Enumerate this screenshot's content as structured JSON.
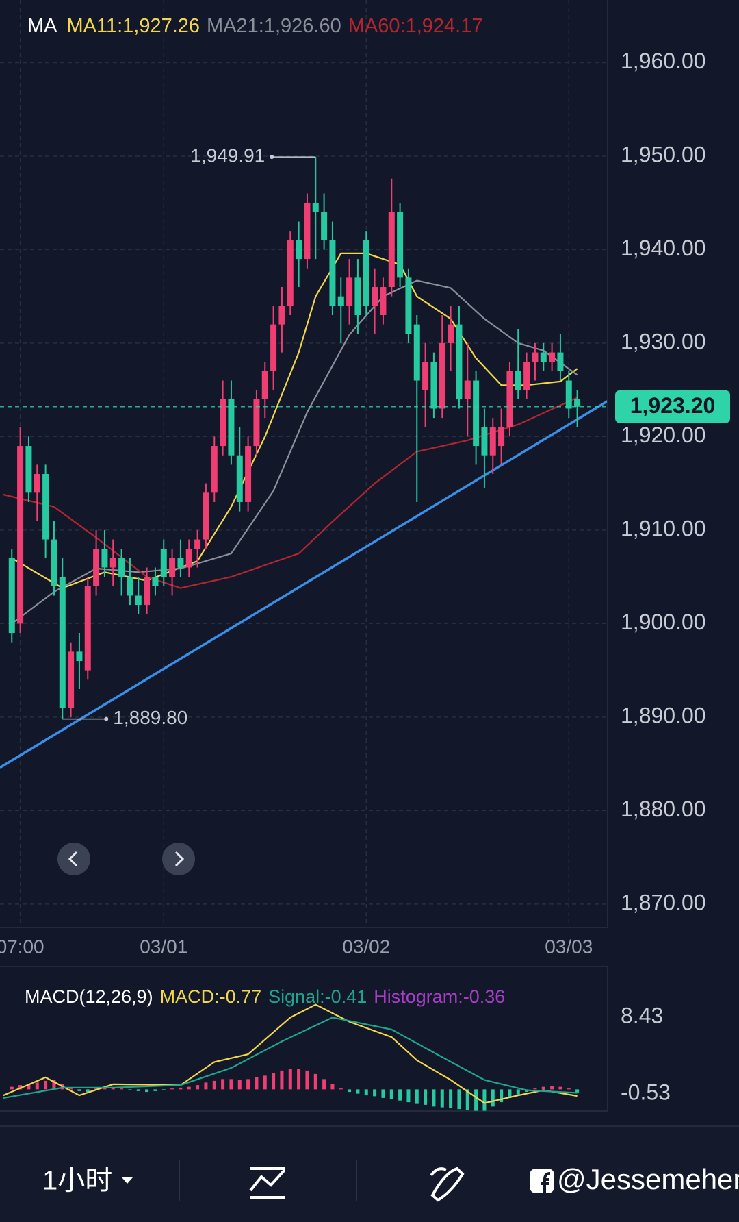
{
  "chart_data": [
    {
      "type": "candlestick",
      "legend_title": "MA",
      "up_color": "#ef3e72",
      "down_color": "#26c9a0",
      "xlim": [
        -1.4,
        70.6
      ],
      "xticks": [
        {
          "value": 1,
          "label": "07:00"
        },
        {
          "value": 18,
          "label": "03/01"
        },
        {
          "value": 42,
          "label": "03/02"
        },
        {
          "value": 66,
          "label": "03/03"
        }
      ],
      "ylim": [
        1867.5,
        1966.7
      ],
      "yticks": [
        {
          "value": 1870,
          "label": "1,870.00"
        },
        {
          "value": 1880,
          "label": "1,880.00"
        },
        {
          "value": 1890,
          "label": "1,890.00"
        },
        {
          "value": 1900,
          "label": "1,900.00"
        },
        {
          "value": 1910,
          "label": "1,910.00"
        },
        {
          "value": 1920,
          "label": "1,920.00"
        },
        {
          "value": 1930,
          "label": "1,930.00"
        },
        {
          "value": 1940,
          "label": "1,940.00"
        },
        {
          "value": 1950,
          "label": "1,950.00"
        },
        {
          "value": 1960,
          "label": "1,960.00"
        }
      ],
      "grid": true,
      "candles": [
        [
          1907,
          1908,
          1898,
          1899
        ],
        [
          1900,
          1921,
          1899,
          1919
        ],
        [
          1919,
          1920,
          1913,
          1914
        ],
        [
          1914,
          1917,
          1911,
          1916
        ],
        [
          1916,
          1917,
          1907,
          1909
        ],
        [
          1909,
          1911,
          1903,
          1904
        ],
        [
          1905,
          1907,
          1889.8,
          1891
        ],
        [
          1891,
          1898,
          1890,
          1897
        ],
        [
          1897,
          1899,
          1893,
          1896
        ],
        [
          1895,
          1905,
          1894,
          1904
        ],
        [
          1904,
          1910,
          1903,
          1908
        ],
        [
          1908,
          1910,
          1905,
          1906
        ],
        [
          1906,
          1909,
          1904,
          1907
        ],
        [
          1907,
          1908,
          1903,
          1905
        ],
        [
          1905,
          1907,
          1902,
          1903
        ],
        [
          1903,
          1905,
          1901,
          1902
        ],
        [
          1902,
          1906,
          1901,
          1905
        ],
        [
          1905,
          1906,
          1903,
          1904
        ],
        [
          1908,
          1909,
          1904,
          1905
        ],
        [
          1905,
          1908,
          1903,
          1907
        ],
        [
          1907,
          1909,
          1905,
          1906
        ],
        [
          1906,
          1909,
          1905,
          1908
        ],
        [
          1908,
          1910,
          1906,
          1909
        ],
        [
          1909,
          1915,
          1908,
          1914
        ],
        [
          1914,
          1920,
          1913,
          1919
        ],
        [
          1919,
          1926,
          1918,
          1924
        ],
        [
          1924,
          1926,
          1917,
          1918
        ],
        [
          1918,
          1921,
          1912,
          1913
        ],
        [
          1913,
          1920,
          1912,
          1919
        ],
        [
          1919,
          1925,
          1918,
          1924
        ],
        [
          1924,
          1928,
          1922,
          1927
        ],
        [
          1927,
          1934,
          1925,
          1932
        ],
        [
          1932,
          1936,
          1929,
          1934
        ],
        [
          1934,
          1942,
          1933,
          1941
        ],
        [
          1941,
          1943,
          1936,
          1939
        ],
        [
          1939,
          1946,
          1938,
          1945
        ],
        [
          1945,
          1949.91,
          1939,
          1944
        ],
        [
          1944,
          1946,
          1940,
          1941
        ],
        [
          1941,
          1943,
          1933,
          1934
        ],
        [
          1935,
          1937,
          1930,
          1934
        ],
        [
          1934,
          1939,
          1932,
          1937
        ],
        [
          1937,
          1939,
          1931,
          1933
        ],
        [
          1941,
          1942,
          1933,
          1934
        ],
        [
          1934,
          1938,
          1931,
          1936
        ],
        [
          1933,
          1937,
          1932,
          1936
        ],
        [
          1936,
          1947.6,
          1935,
          1944
        ],
        [
          1944,
          1945,
          1936,
          1937
        ],
        [
          1937,
          1938,
          1930,
          1931
        ],
        [
          1932,
          1933,
          1913,
          1926
        ],
        [
          1925,
          1930,
          1921,
          1928
        ],
        [
          1928,
          1929,
          1922,
          1923
        ],
        [
          1923,
          1933,
          1922,
          1930
        ],
        [
          1930,
          1934,
          1927,
          1932
        ],
        [
          1932,
          1934,
          1923,
          1924
        ],
        [
          1924,
          1930,
          1920,
          1926
        ],
        [
          1926,
          1927,
          1917,
          1919
        ],
        [
          1921,
          1923,
          1914.5,
          1918
        ],
        [
          1918,
          1922,
          1916,
          1921
        ],
        [
          1919,
          1923,
          1917,
          1921
        ],
        [
          1921,
          1928,
          1920,
          1927
        ],
        [
          1927,
          1931.5,
          1924,
          1925
        ],
        [
          1925,
          1929,
          1924,
          1928
        ],
        [
          1928,
          1930,
          1926,
          1929
        ],
        [
          1929,
          1930,
          1927,
          1928
        ],
        [
          1928,
          1930,
          1927,
          1929
        ],
        [
          1929,
          1931,
          1926,
          1927
        ],
        [
          1926,
          1927,
          1922,
          1923
        ],
        [
          1924,
          1925,
          1921,
          1923.2
        ]
      ],
      "series": [
        {
          "name": "MA11:1,927.26",
          "color": "#f2d64b",
          "x": [
            0,
            6,
            11,
            16,
            22,
            26,
            30,
            34,
            36,
            39,
            42,
            46,
            48,
            52,
            55,
            58,
            61,
            65,
            67
          ],
          "values": [
            1907,
            1903.8,
            1905.5,
            1904.6,
            1906.7,
            1912.5,
            1920,
            1929,
            1935,
            1939.6,
            1939.6,
            1938.4,
            1935,
            1932.6,
            1928.4,
            1925.5,
            1925.5,
            1925.9,
            1927.26
          ]
        },
        {
          "name": "MA21:1,926.60",
          "color": "#8c8f99",
          "x": [
            0,
            5,
            10,
            15,
            20,
            26,
            31,
            35,
            40,
            44,
            48,
            52,
            56,
            60,
            63,
            67
          ],
          "values": [
            1900,
            1903.4,
            1905.9,
            1905.5,
            1905.9,
            1907.5,
            1914.2,
            1922.6,
            1930.9,
            1935,
            1936.7,
            1935.9,
            1932.6,
            1930,
            1929.2,
            1926.6
          ]
        },
        {
          "name": "MA60:1,924.17",
          "color": "#b3262f",
          "x": [
            -1,
            5,
            10,
            16,
            20,
            26,
            34,
            38,
            43,
            48,
            54,
            60,
            67
          ],
          "values": [
            1913.8,
            1912.5,
            1909.2,
            1905,
            1903.8,
            1905,
            1907.5,
            1910.9,
            1915,
            1918.4,
            1919.6,
            1921.3,
            1924.17
          ]
        }
      ],
      "trendline": {
        "color": "#3a8ee6",
        "x": [
          -1.4,
          70.6
        ],
        "values": [
          1884.6,
          1923.8
        ]
      },
      "high": {
        "x": 36,
        "value": 1949.91,
        "label": "1,949.91"
      },
      "low": {
        "x": 6,
        "value": 1889.8,
        "label": "1,889.80"
      },
      "last_price": {
        "value": 1923.2,
        "label": "1,923.20",
        "color": "#2ed3a8"
      }
    },
    {
      "type": "macd",
      "title": "MACD(12,26,9)",
      "xlim": [
        -1.4,
        70.6
      ],
      "ylim": [
        -2.53,
        13.87
      ],
      "yticks": [
        8.43,
        -0.53
      ],
      "series": [
        {
          "name": "MACD:-0.77",
          "color": "#f2d64b",
          "x": [
            -1,
            4,
            8,
            12,
            20,
            24,
            28,
            33,
            36,
            40,
            45,
            48,
            52,
            56,
            60,
            63,
            67
          ],
          "values": [
            -0.7,
            1.4,
            -0.7,
            0.6,
            0.5,
            3.2,
            4.1,
            8.4,
            9.9,
            7.9,
            6.1,
            3.4,
            1.1,
            -1.6,
            -0.7,
            -0.1,
            -0.77
          ]
        },
        {
          "name": "Signal:-0.41",
          "color": "#1fa58c",
          "x": [
            -1,
            6,
            12,
            20,
            26,
            32,
            38,
            45,
            50,
            56,
            61,
            67
          ],
          "values": [
            -1.0,
            0.2,
            0.2,
            0.5,
            2.5,
            5.6,
            8.4,
            7.0,
            4.3,
            1.1,
            -0.1,
            -0.41
          ]
        }
      ],
      "histogram": {
        "name": "Histogram:-0.36",
        "color": "#a63fc4",
        "up_color": "#ef3e72",
        "down_color": "#26c9a0",
        "values": [
          0.3,
          0.5,
          0.6,
          0.8,
          1.0,
          1.1,
          0.6,
          0.1,
          -0.2,
          -0.3,
          0.1,
          0.2,
          0.2,
          0.1,
          -0.1,
          -0.2,
          -0.3,
          -0.2,
          -0.1,
          0.1,
          0.2,
          0.3,
          0.5,
          0.8,
          1.0,
          1.2,
          1.2,
          1.1,
          1.2,
          1.4,
          1.6,
          1.9,
          2.2,
          2.4,
          2.4,
          2.2,
          1.8,
          1.2,
          0.6,
          0.1,
          -0.3,
          -0.5,
          -0.7,
          -0.8,
          -1.0,
          -1.1,
          -1.3,
          -1.5,
          -1.7,
          -1.8,
          -2.0,
          -2.1,
          -2.2,
          -2.3,
          -2.4,
          -2.5,
          -2.5,
          -2.0,
          -1.5,
          -1.0,
          -0.6,
          -0.3,
          0.1,
          0.3,
          0.4,
          0.3,
          0.1,
          -0.36
        ]
      }
    }
  ],
  "toolbar": {
    "interval": "1小时"
  },
  "watermark": "@Jessemeher"
}
